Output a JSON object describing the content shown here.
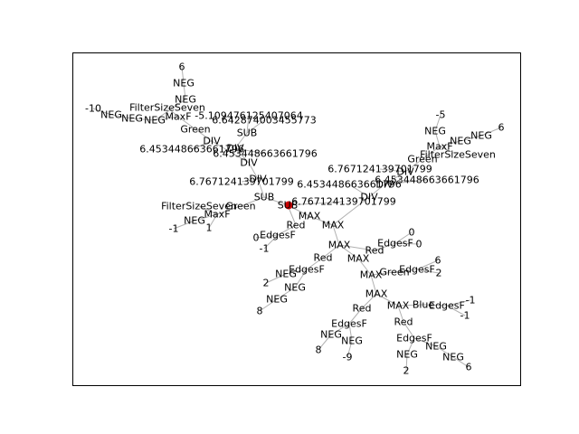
{
  "diagram": {
    "edge_color": "#b0b0b0",
    "root_color": "#cc0000",
    "root_node": "SUB",
    "nodes": [
      {
        "id": "n1",
        "label": "6"
      },
      {
        "id": "n2",
        "label": "NEG"
      },
      {
        "id": "n3",
        "label": "NEG"
      },
      {
        "id": "n4",
        "label": "-10"
      },
      {
        "id": "n5",
        "label": "NEG"
      },
      {
        "id": "n6",
        "label": "NEG"
      },
      {
        "id": "n7",
        "label": "NEG"
      },
      {
        "id": "n8",
        "label": "FilterSizeSeven"
      },
      {
        "id": "n9",
        "label": "MaxF"
      },
      {
        "id": "n10",
        "label": "-5.109476125407064"
      },
      {
        "id": "n11",
        "label": "6.642874003455773"
      },
      {
        "id": "n12",
        "label": "Green"
      },
      {
        "id": "n13",
        "label": "SUB"
      },
      {
        "id": "n14",
        "label": "DIV"
      },
      {
        "id": "n15",
        "label": "DIV"
      },
      {
        "id": "n16",
        "label": "6.453448663661796"
      },
      {
        "id": "n17",
        "label": "6.453448663661796"
      },
      {
        "id": "n18",
        "label": "DIV"
      },
      {
        "id": "n19",
        "label": "DIV"
      },
      {
        "id": "n20",
        "label": "6.767124139701799"
      },
      {
        "id": "n21",
        "label": "SUB"
      },
      {
        "id": "n22",
        "label": "FilterSizeSeven"
      },
      {
        "id": "n23",
        "label": "Green"
      },
      {
        "id": "n24",
        "label": "MaxF"
      },
      {
        "id": "n25",
        "label": "NEG"
      },
      {
        "id": "n26",
        "label": "-1"
      },
      {
        "id": "n27",
        "label": "1"
      },
      {
        "id": "n28",
        "label": "SUB"
      },
      {
        "id": "n29",
        "label": "6.767124139701799"
      },
      {
        "id": "n30",
        "label": "-5"
      },
      {
        "id": "n31",
        "label": "NEG"
      },
      {
        "id": "n32",
        "label": "NEG"
      },
      {
        "id": "n33",
        "label": "NEG"
      },
      {
        "id": "n34",
        "label": "6"
      },
      {
        "id": "n35",
        "label": "MaxF"
      },
      {
        "id": "n36",
        "label": "Green"
      },
      {
        "id": "n37",
        "label": "FilterSizeSeven"
      },
      {
        "id": "n38",
        "label": "6.767124139701799"
      },
      {
        "id": "n39",
        "label": "DIV"
      },
      {
        "id": "n40",
        "label": "6.453448663661796"
      },
      {
        "id": "n41",
        "label": "6.453448663661796"
      },
      {
        "id": "n42",
        "label": "DIV"
      },
      {
        "id": "n43",
        "label": "DIV"
      },
      {
        "id": "n44",
        "label": "MAX"
      },
      {
        "id": "n45",
        "label": "MAX"
      },
      {
        "id": "n46",
        "label": "Red"
      },
      {
        "id": "n47",
        "label": "EdgesF"
      },
      {
        "id": "n48",
        "label": "0"
      },
      {
        "id": "n49",
        "label": "-1"
      },
      {
        "id": "n50",
        "label": "0"
      },
      {
        "id": "n51",
        "label": "EdgesF"
      },
      {
        "id": "n52",
        "label": "0"
      },
      {
        "id": "n53",
        "label": "Red"
      },
      {
        "id": "n54",
        "label": "MAX"
      },
      {
        "id": "n55",
        "label": "MAX"
      },
      {
        "id": "n56",
        "label": "Red"
      },
      {
        "id": "n57",
        "label": "EdgesF"
      },
      {
        "id": "n58",
        "label": "NEG"
      },
      {
        "id": "n59",
        "label": "2"
      },
      {
        "id": "n60",
        "label": "NEG"
      },
      {
        "id": "n61",
        "label": "NEG"
      },
      {
        "id": "n62",
        "label": "8"
      },
      {
        "id": "n63",
        "label": "MAX"
      },
      {
        "id": "n64",
        "label": "Green"
      },
      {
        "id": "n65",
        "label": "EdgesF"
      },
      {
        "id": "n66",
        "label": "6"
      },
      {
        "id": "n67",
        "label": "2"
      },
      {
        "id": "n68",
        "label": "MAX"
      },
      {
        "id": "n69",
        "label": "Red"
      },
      {
        "id": "n70",
        "label": "MAX"
      },
      {
        "id": "n71",
        "label": "Blue"
      },
      {
        "id": "n72",
        "label": "EdgesF"
      },
      {
        "id": "n73",
        "label": "-1"
      },
      {
        "id": "n74",
        "label": "-1"
      },
      {
        "id": "n75",
        "label": "Red"
      },
      {
        "id": "n76",
        "label": "EdgesF"
      },
      {
        "id": "n77",
        "label": "NEG"
      },
      {
        "id": "n78",
        "label": "8"
      },
      {
        "id": "n79",
        "label": "NEG"
      },
      {
        "id": "n80",
        "label": "-9"
      },
      {
        "id": "n81",
        "label": "EdgesF"
      },
      {
        "id": "n82",
        "label": "NEG"
      },
      {
        "id": "n83",
        "label": "NEG"
      },
      {
        "id": "n84",
        "label": "6"
      },
      {
        "id": "n85",
        "label": "NEG"
      },
      {
        "id": "n86",
        "label": "2"
      }
    ],
    "edges": [
      [
        "n1",
        "n2"
      ],
      [
        "n2",
        "n3"
      ],
      [
        "n3",
        "n7"
      ],
      [
        "n4",
        "n5"
      ],
      [
        "n5",
        "n6"
      ],
      [
        "n6",
        "n7"
      ],
      [
        "n7",
        "n9"
      ],
      [
        "n8",
        "n9"
      ],
      [
        "n9",
        "n12"
      ],
      [
        "n10",
        "n13"
      ],
      [
        "n11",
        "n13"
      ],
      [
        "n12",
        "n14"
      ],
      [
        "n13",
        "n15"
      ],
      [
        "n14",
        "n18"
      ],
      [
        "n15",
        "n18"
      ],
      [
        "n16",
        "n14"
      ],
      [
        "n17",
        "n15"
      ],
      [
        "n18",
        "n19"
      ],
      [
        "n19",
        "n21"
      ],
      [
        "n20",
        "n19"
      ],
      [
        "n21",
        "n28"
      ],
      [
        "n22",
        "n24"
      ],
      [
        "n23",
        "n21"
      ],
      [
        "n24",
        "n23"
      ],
      [
        "n25",
        "n24"
      ],
      [
        "n26",
        "n25"
      ],
      [
        "n27",
        "n24"
      ],
      [
        "n29",
        "n28"
      ],
      [
        "n28",
        "n44"
      ],
      [
        "n44",
        "n45"
      ],
      [
        "n45",
        "n43"
      ],
      [
        "n43",
        "n42"
      ],
      [
        "n42",
        "n39"
      ],
      [
        "n39",
        "n36"
      ],
      [
        "n36",
        "n35"
      ],
      [
        "n35",
        "n31"
      ],
      [
        "n31",
        "n30"
      ],
      [
        "n35",
        "n32"
      ],
      [
        "n32",
        "n33"
      ],
      [
        "n33",
        "n34"
      ],
      [
        "n37",
        "n35"
      ],
      [
        "n38",
        "n39"
      ],
      [
        "n40",
        "n42"
      ],
      [
        "n41",
        "n43"
      ],
      [
        "n28",
        "n46"
      ],
      [
        "n46",
        "n47"
      ],
      [
        "n47",
        "n48"
      ],
      [
        "n47",
        "n49"
      ],
      [
        "n45",
        "n54"
      ],
      [
        "n54",
        "n53"
      ],
      [
        "n53",
        "n51"
      ],
      [
        "n51",
        "n50"
      ],
      [
        "n51",
        "n52"
      ],
      [
        "n54",
        "n55"
      ],
      [
        "n54",
        "n56"
      ],
      [
        "n56",
        "n57"
      ],
      [
        "n57",
        "n58"
      ],
      [
        "n58",
        "n59"
      ],
      [
        "n57",
        "n60"
      ],
      [
        "n60",
        "n61"
      ],
      [
        "n61",
        "n62"
      ],
      [
        "n55",
        "n63"
      ],
      [
        "n63",
        "n64"
      ],
      [
        "n64",
        "n65"
      ],
      [
        "n65",
        "n66"
      ],
      [
        "n65",
        "n67"
      ],
      [
        "n63",
        "n68"
      ],
      [
        "n68",
        "n69"
      ],
      [
        "n69",
        "n76"
      ],
      [
        "n76",
        "n77"
      ],
      [
        "n77",
        "n78"
      ],
      [
        "n76",
        "n79"
      ],
      [
        "n79",
        "n80"
      ],
      [
        "n68",
        "n70"
      ],
      [
        "n70",
        "n71"
      ],
      [
        "n71",
        "n72"
      ],
      [
        "n72",
        "n73"
      ],
      [
        "n72",
        "n74"
      ],
      [
        "n70",
        "n75"
      ],
      [
        "n75",
        "n81"
      ],
      [
        "n81",
        "n82"
      ],
      [
        "n82",
        "n83"
      ],
      [
        "n83",
        "n84"
      ],
      [
        "n81",
        "n85"
      ],
      [
        "n85",
        "n86"
      ]
    ]
  }
}
